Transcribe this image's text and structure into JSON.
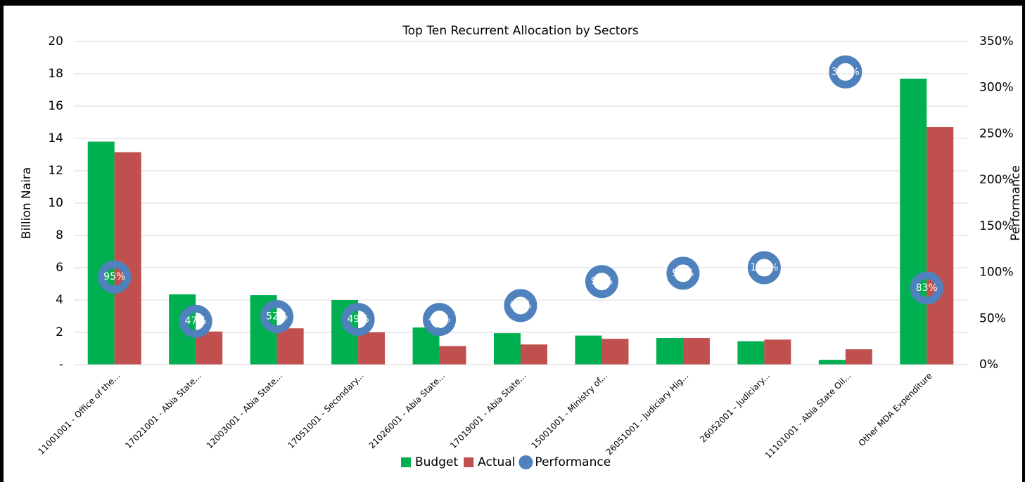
{
  "chart_data": {
    "type": "bar",
    "title": "Top Ten Recurrent Allocation by Sectors",
    "y_label": "Billion Naira",
    "y2_label": "Performance",
    "categories": [
      "11001001 - Office of the...",
      "17021001 - Abia State...",
      "12003001 - Abia State...",
      "17051001 - Secondary...",
      "21026001 - Abia State...",
      "17019001 - Abia State...",
      "15001001 - Ministry of...",
      "26051001 - Judiciary Hig...",
      "26052001 - Judiciary...",
      "11101001 - Abia State Oil...",
      "Other MDA Expenditure"
    ],
    "series": [
      {
        "name": "Budget",
        "color": "#00b050",
        "values": [
          13.8,
          4.35,
          4.3,
          4.0,
          2.3,
          1.95,
          1.8,
          1.65,
          1.45,
          0.3,
          17.7
        ]
      },
      {
        "name": "Actual",
        "color": "#c0504d",
        "values": [
          13.15,
          2.05,
          2.25,
          2.0,
          1.15,
          1.25,
          1.6,
          1.65,
          1.55,
          0.95,
          14.7
        ]
      },
      {
        "name": "Performance",
        "color": "#4f81bd",
        "axis": "y2",
        "values": [
          95,
          47,
          52,
          49,
          49,
          64,
          90,
          99,
          105,
          317,
          83
        ],
        "value_labels": [
          "95%",
          "47%",
          "52%",
          "49%",
          "49%",
          "64%",
          "90%",
          "99%",
          "105%",
          "317%",
          "83%"
        ]
      }
    ],
    "ylim": [
      0,
      20
    ],
    "yticks": [
      {
        "value": 0,
        "label": "-"
      },
      2,
      4,
      6,
      8,
      10,
      12,
      14,
      16,
      18,
      20
    ],
    "y2lim": [
      0,
      350
    ],
    "y2ticks": [
      {
        "value": 0,
        "label": "0%"
      },
      {
        "value": 50,
        "label": "50%"
      },
      {
        "value": 100,
        "label": "100%"
      },
      {
        "value": 150,
        "label": "150%"
      },
      {
        "value": 200,
        "label": "200%"
      },
      {
        "value": 250,
        "label": "250%"
      },
      {
        "value": 300,
        "label": "300%"
      },
      {
        "value": 350,
        "label": "350%"
      }
    ],
    "grid": true,
    "legend": "bottom"
  }
}
